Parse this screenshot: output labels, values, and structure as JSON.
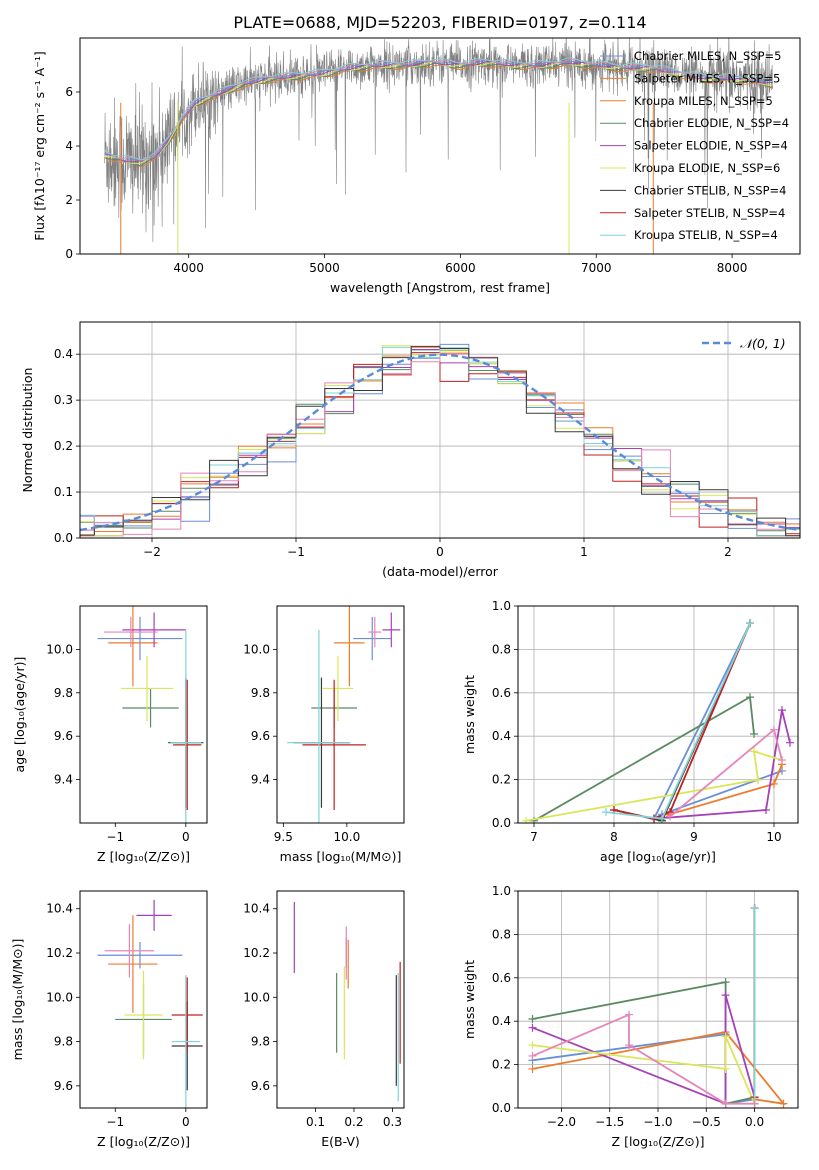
{
  "figure": {
    "title": "PLATE=0688, MJD=52203, FIBERID=0197, z=0.114"
  },
  "colors": {
    "series": [
      "#6a8fd8",
      "#ec7c2d",
      "#5a8a62",
      "#a640b8",
      "#d9e65a",
      "#3a3a3a",
      "#c02020",
      "#7fd4d8",
      "#e685b8"
    ],
    "spectrum": "#808080",
    "gauss": "#5b8bd8",
    "grid": "#b0b0b0"
  },
  "chart_data": [
    {
      "id": "spectrum",
      "type": "line",
      "xlabel": "wavelength [Angstrom, rest frame]",
      "ylabel": "Flux [fλ10⁻¹⁷ erg cm⁻² s⁻¹ A⁻¹]",
      "xlim": [
        3200,
        8500
      ],
      "ylim": [
        0,
        8
      ],
      "xticks": [
        4000,
        5000,
        6000,
        7000,
        8000
      ],
      "yticks": [
        0,
        2,
        4,
        6
      ],
      "grid": false,
      "legend_position": "right",
      "legend": [
        "Chabrier MILES, N_SSP=5",
        "Salpeter MILES, N_SSP=5",
        "Kroupa MILES, N_SSP=5",
        "Chabrier ELODIE, N_SSP=4",
        "Salpeter ELODIE, N_SSP=4",
        "Kroupa ELODIE, N_SSP=6",
        "Chabrier STELIB, N_SSP=4",
        "Salpeter STELIB, N_SSP=4",
        "Kroupa STELIB, N_SSP=4"
      ],
      "continuum": {
        "x": [
          3380,
          3500,
          3650,
          3750,
          3850,
          3950,
          4050,
          4150,
          4250,
          4400,
          4600,
          4800,
          5000,
          5200,
          5400,
          5600,
          5800,
          6000,
          6200,
          6400,
          6600,
          6800,
          7000,
          7200,
          7400,
          7600,
          7800,
          8000,
          8200,
          8300
        ],
        "y": [
          3.7,
          3.5,
          3.4,
          3.6,
          4.2,
          5.0,
          5.6,
          5.8,
          6.0,
          6.3,
          6.5,
          6.6,
          6.7,
          6.9,
          7.0,
          7.0,
          7.1,
          7.0,
          7.1,
          7.0,
          7.0,
          7.1,
          7.0,
          6.9,
          6.9,
          6.7,
          6.5,
          6.5,
          6.4,
          6.3
        ]
      }
    },
    {
      "id": "residuals",
      "type": "histogram",
      "xlabel": "(data-model)/error",
      "ylabel": "Normed distribution",
      "xlim": [
        -2.5,
        2.5
      ],
      "ylim": [
        0,
        0.47
      ],
      "xticks": [
        -2,
        -1,
        0,
        1,
        2
      ],
      "yticks": [
        0.0,
        0.1,
        0.2,
        0.3,
        0.4
      ],
      "grid": true,
      "legend": [
        "𝒩(0, 1)"
      ],
      "bin_width": 0.1,
      "gaussian": {
        "mean": 0,
        "sigma": 1
      }
    },
    {
      "id": "age_vs_Z",
      "type": "scatter",
      "xlabel": "Z [log₁₀(Z/Z⊙)]",
      "ylabel": "age  [log₁₀(age/yr)]",
      "xlim": [
        -1.5,
        0.3
      ],
      "ylim": [
        9.2,
        10.2
      ],
      "xticks": [
        -1,
        0
      ],
      "yticks": [
        9.4,
        9.6,
        9.8,
        10.0
      ],
      "points": [
        {
          "x": -0.65,
          "y": 10.05,
          "xerr": 0.6,
          "yerr": 0.1
        },
        {
          "x": -0.75,
          "y": 10.03,
          "xerr": 0.35,
          "yerr": 0.2
        },
        {
          "x": -0.5,
          "y": 9.73,
          "xerr": 0.4,
          "yerr": 0.09
        },
        {
          "x": -0.45,
          "y": 10.09,
          "xerr": 0.45,
          "yerr": 0.08
        },
        {
          "x": -0.55,
          "y": 9.82,
          "xerr": 0.37,
          "yerr": 0.15
        },
        {
          "x": 0.0,
          "y": 9.57,
          "xerr": 0.25,
          "yerr": 0.3
        },
        {
          "x": 0.02,
          "y": 9.56,
          "xerr": 0.2,
          "yerr": 0.3
        },
        {
          "x": 0.0,
          "y": 9.57,
          "xerr": 0.22,
          "yerr": 0.52
        },
        {
          "x": -0.78,
          "y": 10.08,
          "xerr": 0.38,
          "yerr": 0.07
        }
      ]
    },
    {
      "id": "age_vs_mass",
      "type": "scatter",
      "xlabel": "mass [log₁₀(M/M⊙)]",
      "ylabel": "",
      "xlim": [
        9.45,
        10.45
      ],
      "ylim": [
        9.2,
        10.2
      ],
      "xticks": [
        9.5,
        10.0
      ],
      "yticks": [
        9.4,
        9.6,
        9.8,
        10.0
      ],
      "points": [
        {
          "x": 10.2,
          "y": 10.05,
          "xerr": 0.15,
          "yerr": 0.1
        },
        {
          "x": 10.02,
          "y": 10.03,
          "xerr": 0.12,
          "yerr": 0.2
        },
        {
          "x": 9.9,
          "y": 9.73,
          "xerr": 0.18,
          "yerr": 0.09
        },
        {
          "x": 10.35,
          "y": 10.09,
          "xerr": 0.07,
          "yerr": 0.08
        },
        {
          "x": 9.93,
          "y": 9.82,
          "xerr": 0.12,
          "yerr": 0.15
        },
        {
          "x": 9.8,
          "y": 9.57,
          "xerr": 0.22,
          "yerr": 0.3
        },
        {
          "x": 9.9,
          "y": 9.56,
          "xerr": 0.25,
          "yerr": 0.3
        },
        {
          "x": 9.78,
          "y": 9.57,
          "xerr": 0.25,
          "yerr": 0.52
        },
        {
          "x": 10.22,
          "y": 10.08,
          "xerr": 0.05,
          "yerr": 0.07
        }
      ]
    },
    {
      "id": "weight_vs_age",
      "type": "line",
      "xlabel": "age  [log₁₀(age/yr)]",
      "ylabel": "mass weight",
      "xlim": [
        6.8,
        10.3
      ],
      "ylim": [
        0,
        1.0
      ],
      "xticks": [
        7,
        8,
        9,
        10
      ],
      "yticks": [
        0.0,
        0.2,
        0.4,
        0.6,
        0.8,
        1.0
      ],
      "grid": true,
      "series": [
        {
          "x": [
            9.7,
            8.5,
            8.6,
            9.8,
            10.1
          ],
          "y": [
            0.92,
            0.02,
            0.04,
            0.2,
            0.24
          ]
        },
        {
          "x": [
            9.7,
            8.6,
            8.7,
            10.0,
            10.1
          ],
          "y": [
            0.92,
            0.01,
            0.04,
            0.18,
            0.27
          ]
        },
        {
          "x": [
            7.0,
            9.7,
            9.75
          ],
          "y": [
            0.01,
            0.58,
            0.41
          ]
        },
        {
          "x": [
            8.5,
            9.9,
            10.1,
            10.2
          ],
          "y": [
            0.02,
            0.06,
            0.52,
            0.37
          ]
        },
        {
          "x": [
            6.9,
            9.8,
            9.75,
            10.1
          ],
          "y": [
            0.01,
            0.2,
            0.33,
            0.29
          ]
        },
        {
          "x": [
            8.0,
            8.6,
            9.7
          ],
          "y": [
            0.06,
            0.01,
            0.92
          ]
        },
        {
          "x": [
            8.0,
            8.5,
            8.7,
            9.7
          ],
          "y": [
            0.06,
            0.02,
            0.05,
            0.92
          ]
        },
        {
          "x": [
            7.9,
            8.6,
            9.7
          ],
          "y": [
            0.05,
            0.02,
            0.92
          ]
        },
        {
          "x": [
            8.7,
            10.0,
            10.1
          ],
          "y": [
            0.03,
            0.43,
            0.29
          ]
        }
      ]
    },
    {
      "id": "mass_vs_Z",
      "type": "scatter",
      "xlabel": "Z [log₁₀(Z/Z⊙)]",
      "ylabel": "mass [log₁₀(M/M⊙)]",
      "xlim": [
        -1.5,
        0.3
      ],
      "ylim": [
        9.5,
        10.48
      ],
      "xticks": [
        -1,
        0
      ],
      "yticks": [
        9.6,
        9.8,
        10.0,
        10.2,
        10.4
      ],
      "points": [
        {
          "x": -0.65,
          "y": 10.19,
          "xerr": 0.6,
          "yerr": 0.06
        },
        {
          "x": -0.75,
          "y": 10.15,
          "xerr": 0.35,
          "yerr": 0.22
        },
        {
          "x": -0.6,
          "y": 9.9,
          "xerr": 0.4,
          "yerr": 0.16
        },
        {
          "x": -0.45,
          "y": 10.37,
          "xerr": 0.25,
          "yerr": 0.07
        },
        {
          "x": -0.6,
          "y": 9.92,
          "xerr": 0.27,
          "yerr": 0.2
        },
        {
          "x": 0.02,
          "y": 9.78,
          "xerr": 0.22,
          "yerr": 0.2
        },
        {
          "x": 0.02,
          "y": 9.92,
          "xerr": 0.22,
          "yerr": 0.17
        },
        {
          "x": 0.0,
          "y": 9.8,
          "xerr": 0.2,
          "yerr": 0.3
        },
        {
          "x": -0.8,
          "y": 10.21,
          "xerr": 0.35,
          "yerr": 0.12
        }
      ]
    },
    {
      "id": "mass_vs_EBV",
      "type": "scatter",
      "xlabel": "E(B-V)",
      "ylabel": "",
      "xlim": [
        0.0,
        0.33
      ],
      "ylim": [
        9.5,
        10.48
      ],
      "xticks": [
        0.1,
        0.2,
        0.3
      ],
      "yticks": [
        9.6,
        9.8,
        10.0,
        10.2,
        10.4
      ],
      "points": [
        {
          "x": 0.18,
          "y": 10.2,
          "xerr": 0,
          "yerr": 0.07
        },
        {
          "x": 0.185,
          "y": 10.15,
          "xerr": 0,
          "yerr": 0.11
        },
        {
          "x": 0.155,
          "y": 9.93,
          "xerr": 0,
          "yerr": 0.18
        },
        {
          "x": 0.045,
          "y": 10.27,
          "xerr": 0,
          "yerr": 0.16
        },
        {
          "x": 0.175,
          "y": 9.93,
          "xerr": 0,
          "yerr": 0.21
        },
        {
          "x": 0.31,
          "y": 9.85,
          "xerr": 0,
          "yerr": 0.25
        },
        {
          "x": 0.32,
          "y": 9.93,
          "xerr": 0,
          "yerr": 0.23
        },
        {
          "x": 0.315,
          "y": 9.82,
          "xerr": 0,
          "yerr": 0.29
        },
        {
          "x": 0.18,
          "y": 10.2,
          "xerr": 0,
          "yerr": 0.12
        }
      ]
    },
    {
      "id": "weight_vs_Z",
      "type": "line",
      "xlabel": "Z [log₁₀(Z/Z⊙)]",
      "ylabel": "mass weight",
      "xlim": [
        -2.45,
        0.45
      ],
      "ylim": [
        0,
        1.0
      ],
      "xticks": [
        -2.0,
        -1.5,
        -1.0,
        -0.5,
        0.0
      ],
      "yticks": [
        0.0,
        0.2,
        0.4,
        0.6,
        0.8,
        1.0
      ],
      "grid": true,
      "series": [
        {
          "x": [
            -2.3,
            -0.3,
            -0.3,
            0.0,
            0.0
          ],
          "y": [
            0.22,
            0.34,
            0.02,
            0.04,
            0.92
          ]
        },
        {
          "x": [
            -2.3,
            -0.3,
            0.3,
            0.0,
            0.0
          ],
          "y": [
            0.18,
            0.35,
            0.02,
            0.04,
            0.92
          ]
        },
        {
          "x": [
            -2.3,
            -0.3,
            -0.3,
            0.0
          ],
          "y": [
            0.41,
            0.58,
            0.02,
            0.05
          ]
        },
        {
          "x": [
            -2.3,
            -0.3,
            -0.3,
            0.0
          ],
          "y": [
            0.37,
            0.02,
            0.52,
            0.05
          ]
        },
        {
          "x": [
            -2.3,
            -0.3,
            -0.3,
            0.0
          ],
          "y": [
            0.29,
            0.18,
            0.33,
            0.02
          ]
        },
        {
          "x": [
            0.0,
            0.0
          ],
          "y": [
            0.02,
            0.92
          ]
        },
        {
          "x": [
            0.0,
            0.0
          ],
          "y": [
            0.05,
            0.92
          ]
        },
        {
          "x": [
            0.0,
            0.0
          ],
          "y": [
            0.02,
            0.92
          ]
        },
        {
          "x": [
            -2.3,
            -1.3,
            -1.3,
            -0.3,
            0.0
          ],
          "y": [
            0.24,
            0.43,
            0.29,
            0.02,
            0.02
          ]
        }
      ]
    }
  ]
}
